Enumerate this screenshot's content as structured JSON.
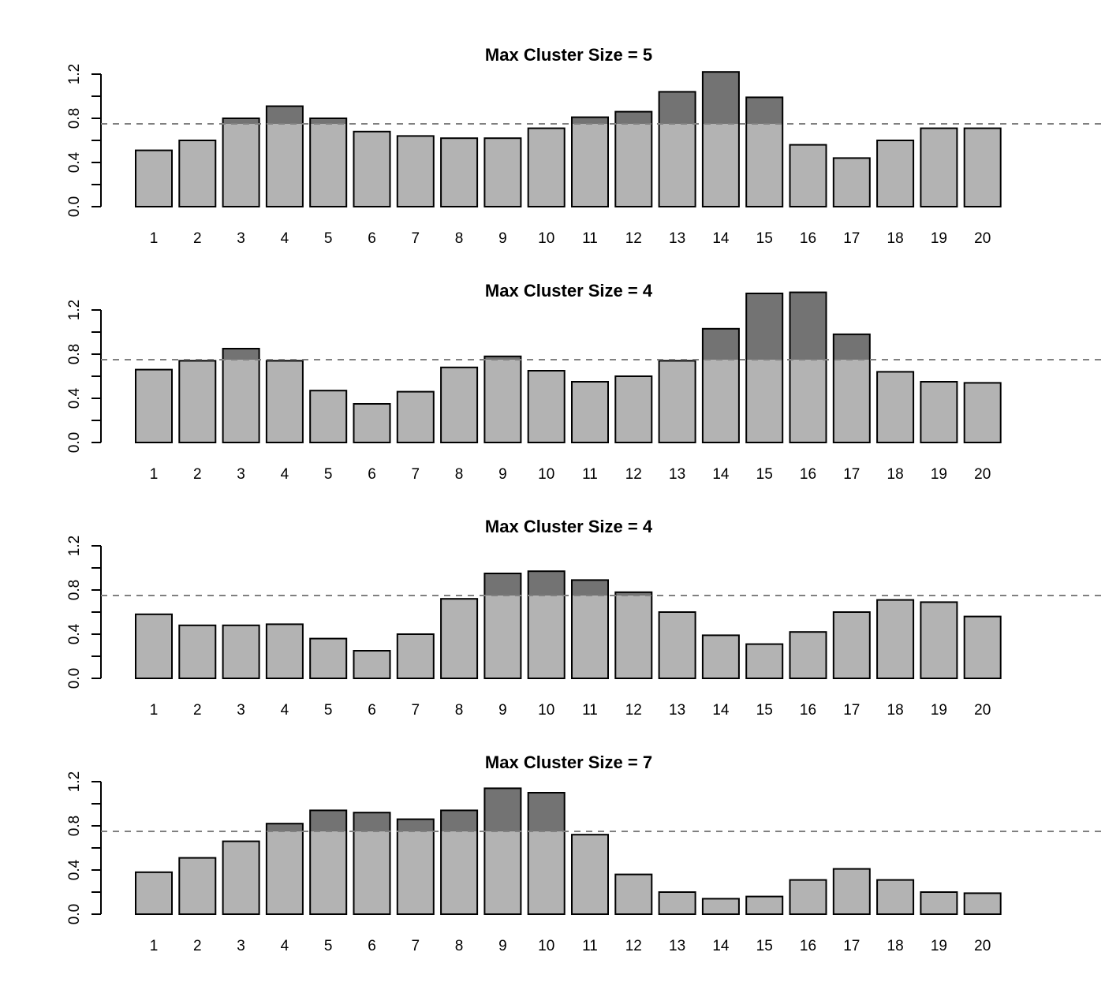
{
  "chart_data": [
    {
      "type": "bar",
      "title": "Max Cluster Size = 5",
      "categories": [
        "1",
        "2",
        "3",
        "4",
        "5",
        "6",
        "7",
        "8",
        "9",
        "10",
        "11",
        "12",
        "13",
        "14",
        "15",
        "16",
        "17",
        "18",
        "19",
        "20"
      ],
      "values": [
        0.51,
        0.6,
        0.8,
        0.91,
        0.8,
        0.68,
        0.64,
        0.62,
        0.62,
        0.71,
        0.81,
        0.86,
        1.04,
        1.22,
        0.99,
        0.56,
        0.44,
        0.6,
        0.71,
        0.71
      ],
      "threshold": 0.75,
      "ylim": [
        0,
        1.2
      ],
      "yticks": [
        "0.0",
        "0.4",
        "0.8",
        "1.2"
      ]
    },
    {
      "type": "bar",
      "title": "Max Cluster Size = 4",
      "categories": [
        "1",
        "2",
        "3",
        "4",
        "5",
        "6",
        "7",
        "8",
        "9",
        "10",
        "11",
        "12",
        "13",
        "14",
        "15",
        "16",
        "17",
        "18",
        "19",
        "20"
      ],
      "values": [
        0.66,
        0.74,
        0.85,
        0.74,
        0.47,
        0.35,
        0.46,
        0.68,
        0.78,
        0.65,
        0.55,
        0.6,
        0.74,
        1.03,
        1.35,
        1.36,
        0.98,
        0.64,
        0.55,
        0.54
      ],
      "threshold": 0.75,
      "ylim": [
        0,
        1.2
      ],
      "yticks": [
        "0.0",
        "0.4",
        "0.8",
        "1.2"
      ]
    },
    {
      "type": "bar",
      "title": "Max Cluster Size = 4",
      "categories": [
        "1",
        "2",
        "3",
        "4",
        "5",
        "6",
        "7",
        "8",
        "9",
        "10",
        "11",
        "12",
        "13",
        "14",
        "15",
        "16",
        "17",
        "18",
        "19",
        "20"
      ],
      "values": [
        0.58,
        0.48,
        0.48,
        0.49,
        0.36,
        0.25,
        0.4,
        0.72,
        0.95,
        0.97,
        0.89,
        0.78,
        0.6,
        0.39,
        0.31,
        0.42,
        0.6,
        0.71,
        0.69,
        0.56
      ],
      "threshold": 0.75,
      "ylim": [
        0,
        1.2
      ],
      "yticks": [
        "0.0",
        "0.4",
        "0.8",
        "1.2"
      ]
    },
    {
      "type": "bar",
      "title": "Max Cluster Size = 7",
      "categories": [
        "1",
        "2",
        "3",
        "4",
        "5",
        "6",
        "7",
        "8",
        "9",
        "10",
        "11",
        "12",
        "13",
        "14",
        "15",
        "16",
        "17",
        "18",
        "19",
        "20"
      ],
      "values": [
        0.38,
        0.51,
        0.66,
        0.82,
        0.94,
        0.92,
        0.86,
        0.94,
        1.14,
        1.1,
        0.72,
        0.36,
        0.2,
        0.14,
        0.16,
        0.31,
        0.41,
        0.31,
        0.2,
        0.19
      ],
      "threshold": 0.75,
      "ylim": [
        0,
        1.2
      ],
      "yticks": [
        "0.0",
        "0.4",
        "0.8",
        "1.2"
      ]
    }
  ],
  "colors": {
    "bar": "#b3b3b3",
    "excess": "#737373",
    "threshold": "#808080"
  }
}
